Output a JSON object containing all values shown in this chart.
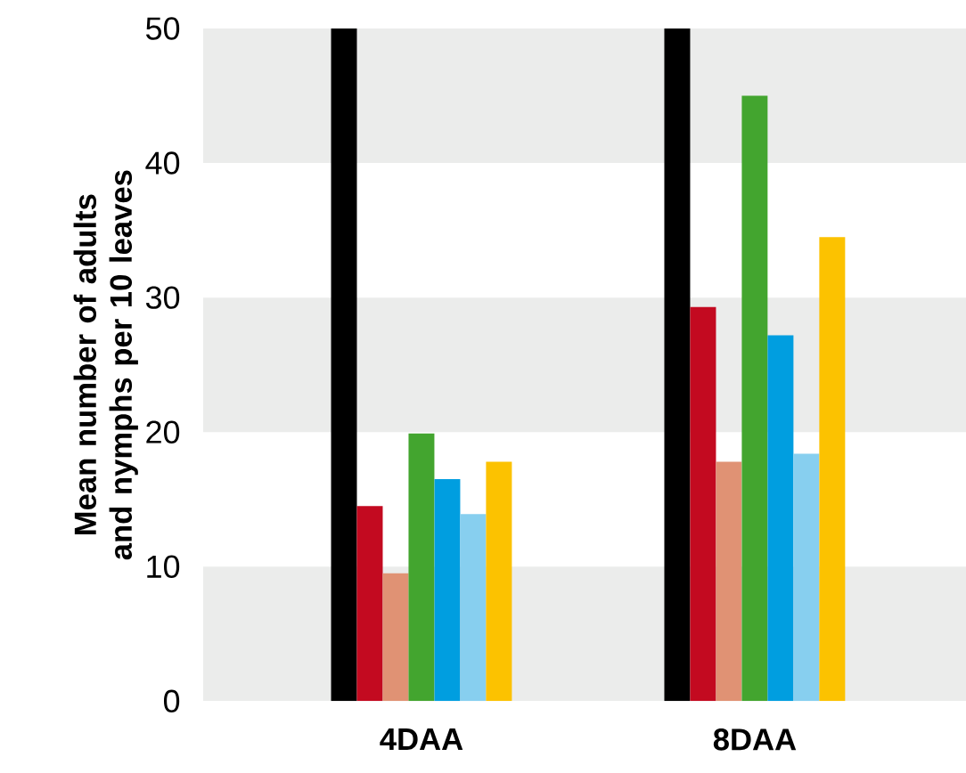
{
  "chart_data": {
    "type": "bar",
    "ylabel": "Mean number of adults and nymphs per 10 leaves",
    "categories": [
      "4DAA",
      "8DAA"
    ],
    "series": [
      {
        "color": "#000000",
        "values": [
          50,
          50
        ]
      },
      {
        "color": "#c30a20",
        "values": [
          14.5,
          29.3
        ]
      },
      {
        "color": "#e09274",
        "values": [
          9.5,
          17.8
        ]
      },
      {
        "color": "#43a52f",
        "values": [
          19.9,
          45.0
        ]
      },
      {
        "color": "#009ee0",
        "values": [
          16.5,
          27.2
        ]
      },
      {
        "color": "#87cfef",
        "values": [
          13.9,
          18.4
        ]
      },
      {
        "color": "#fcc200",
        "values": [
          17.8,
          34.5
        ]
      }
    ],
    "ylim": [
      0,
      50
    ],
    "yticks": [
      0,
      10,
      20,
      30,
      40,
      50
    ],
    "bands": [
      {
        "axis": "y",
        "from": 0,
        "to": 10,
        "color": "#ebeceb"
      },
      {
        "axis": "y",
        "from": 20,
        "to": 30,
        "color": "#ebeceb"
      },
      {
        "axis": "y",
        "from": 40,
        "to": 50,
        "color": "#ebeceb"
      }
    ]
  }
}
